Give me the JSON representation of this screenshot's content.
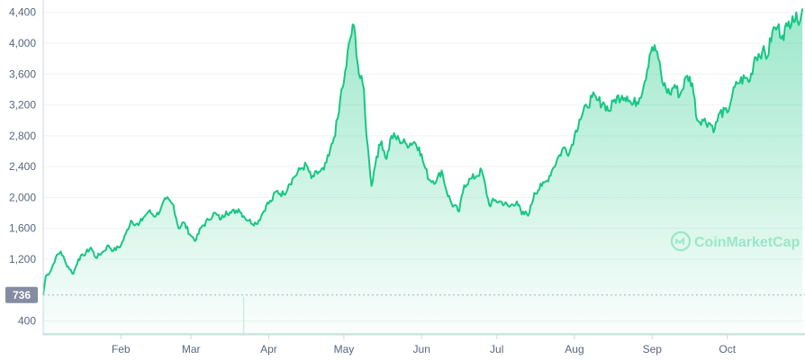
{
  "colors": {
    "line": "#16c784",
    "fill_top": "#16c784",
    "grid": "#eff2f5",
    "label": "#58667e",
    "badge": "#858ca2",
    "volume": "#c9ede0"
  },
  "watermark": {
    "text": "CoinMarketCap",
    "icon": "coinmarketcap-logo-icon"
  },
  "chart_data": {
    "type": "area",
    "title": "",
    "xlabel": "",
    "ylabel": "",
    "ylim": [
      220,
      4560
    ],
    "grid": true,
    "legend": "none",
    "y_ticks": [
      "400",
      "1,200",
      "1,600",
      "2,000",
      "2,400",
      "2,800",
      "3,200",
      "3,600",
      "4,000",
      "4,400"
    ],
    "y_tick_values": [
      400,
      1200,
      1600,
      2000,
      2400,
      2800,
      3200,
      3600,
      4000,
      4400
    ],
    "x_ticks": [
      "Feb",
      "Mar",
      "Apr",
      "May",
      "Jun",
      "Jul",
      "Aug",
      "Sep",
      "Oct"
    ],
    "x_tick_days": [
      31,
      59,
      90,
      120,
      151,
      181,
      212,
      243,
      273
    ],
    "baseline": {
      "value": 736,
      "label": "736"
    },
    "volume_spike_day": 80,
    "series": [
      {
        "x_days": [
          0,
          1,
          3,
          5,
          7,
          9,
          12,
          14,
          16,
          19,
          21,
          24,
          26,
          28,
          31,
          33,
          35,
          38,
          40,
          42,
          45,
          47,
          49,
          52,
          54,
          56,
          59,
          61,
          63,
          66,
          68,
          71,
          73,
          75,
          78,
          80,
          82,
          85,
          87,
          89,
          91,
          93,
          96,
          98,
          100,
          103,
          105,
          107,
          110,
          112,
          114,
          116,
          118,
          119,
          120,
          121,
          122,
          124,
          126,
          128,
          129,
          130,
          131,
          133,
          135,
          137,
          139,
          142,
          145,
          148,
          150,
          152,
          154,
          157,
          159,
          161,
          163,
          166,
          168,
          171,
          173,
          175,
          178,
          180,
          183,
          186,
          189,
          191,
          194,
          196,
          199,
          201,
          203,
          206,
          208,
          210,
          212,
          214,
          217,
          219,
          221,
          224,
          226,
          228,
          231,
          233,
          235,
          238,
          240,
          242,
          243,
          245,
          247,
          250,
          252,
          254,
          257,
          259,
          261,
          263,
          266,
          268,
          270,
          273,
          275,
          277,
          280,
          282,
          284,
          287,
          289,
          291,
          293,
          295,
          297,
          299,
          301,
          303
        ],
        "values": [
          740,
          980,
          1050,
          1220,
          1300,
          1150,
          1010,
          1200,
          1250,
          1350,
          1220,
          1300,
          1380,
          1310,
          1380,
          1530,
          1700,
          1640,
          1740,
          1820,
          1760,
          1860,
          1980,
          1900,
          1600,
          1680,
          1500,
          1450,
          1610,
          1710,
          1800,
          1720,
          1820,
          1800,
          1850,
          1760,
          1700,
          1660,
          1760,
          1900,
          1950,
          2080,
          2040,
          2170,
          2260,
          2380,
          2420,
          2250,
          2330,
          2360,
          2540,
          2770,
          3100,
          3400,
          3490,
          3700,
          4000,
          4230,
          3600,
          3400,
          2800,
          2500,
          2150,
          2530,
          2730,
          2500,
          2800,
          2750,
          2690,
          2720,
          2650,
          2420,
          2230,
          2220,
          2350,
          2080,
          1920,
          1820,
          2160,
          2250,
          2280,
          2350,
          1900,
          1960,
          1940,
          1880,
          1950,
          1780,
          1800,
          2060,
          2150,
          2220,
          2350,
          2550,
          2650,
          2580,
          2800,
          3010,
          3180,
          3300,
          3260,
          3210,
          3120,
          3270,
          3320,
          3310,
          3200,
          3290,
          3500,
          3850,
          3950,
          3890,
          3500,
          3340,
          3460,
          3320,
          3580,
          3480,
          3000,
          3010,
          2960,
          2890,
          3100,
          3100,
          3330,
          3480,
          3550,
          3510,
          3820,
          3900,
          3820,
          4150,
          4210,
          4100,
          4220,
          4350,
          4290,
          4450
        ]
      }
    ]
  }
}
